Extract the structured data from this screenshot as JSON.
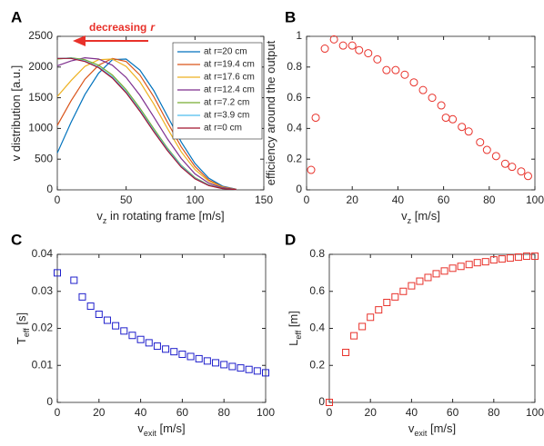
{
  "chart_data": [
    {
      "type": "line",
      "label": "A",
      "xlabel": [
        "v",
        "z",
        " in rotating frame [m/s]"
      ],
      "ylabel": [
        "v distribution [a.u.]"
      ],
      "annotation": [
        "decreasing",
        "r"
      ],
      "annotation_color": "#e8312a",
      "legend": "northeast",
      "x": [
        0,
        10,
        20,
        30,
        40,
        50,
        60,
        70,
        80,
        90,
        100,
        110,
        120,
        130
      ],
      "series": [
        {
          "name": "at r=20 cm",
          "color": "#0072bd",
          "values": [
            600,
            1100,
            1550,
            1900,
            2120,
            2130,
            1950,
            1620,
            1200,
            780,
            430,
            190,
            60,
            10
          ]
        },
        {
          "name": "at r=19.4 cm",
          "color": "#d95319",
          "values": [
            1050,
            1450,
            1800,
            2030,
            2140,
            2090,
            1870,
            1520,
            1100,
            700,
            380,
            160,
            50,
            10
          ]
        },
        {
          "name": "at r=17.6 cm",
          "color": "#edb120",
          "values": [
            1520,
            1780,
            2010,
            2120,
            2130,
            2010,
            1760,
            1400,
            1000,
            620,
            330,
            140,
            45,
            10
          ]
        },
        {
          "name": "at r=12.4 cm",
          "color": "#7e2f8e",
          "values": [
            2020,
            2100,
            2150,
            2130,
            2030,
            1830,
            1540,
            1190,
            830,
            510,
            260,
            110,
            35,
            8
          ]
        },
        {
          "name": "at r=7.2 cm",
          "color": "#77ac30",
          "values": [
            2130,
            2150,
            2120,
            2030,
            1870,
            1630,
            1330,
            1000,
            680,
            400,
            200,
            80,
            25,
            5
          ]
        },
        {
          "name": "at r=3.9 cm",
          "color": "#4dbeee",
          "values": [
            2140,
            2145,
            2100,
            2000,
            1840,
            1600,
            1300,
            970,
            660,
            390,
            190,
            75,
            22,
            5
          ]
        },
        {
          "name": "at r=0 cm",
          "color": "#a2142f",
          "values": [
            2140,
            2140,
            2090,
            1990,
            1820,
            1580,
            1280,
            950,
            640,
            370,
            180,
            70,
            20,
            5
          ]
        }
      ],
      "xlim": [
        0,
        150
      ],
      "xticks": [
        0,
        50,
        100,
        150
      ],
      "ylim": [
        0,
        2500
      ],
      "yticks": [
        0,
        500,
        1000,
        1500,
        2000,
        2500
      ]
    },
    {
      "type": "scatter",
      "label": "B",
      "xlabel": [
        "v",
        "z",
        " [m/s]"
      ],
      "ylabel": [
        "efficiency around the output"
      ],
      "marker": "circle",
      "color": "#e8312a",
      "x": [
        2,
        4,
        8,
        12,
        16,
        20,
        23,
        27,
        31,
        35,
        39,
        43,
        47,
        51,
        55,
        59,
        61,
        64,
        68,
        71,
        76,
        79,
        83,
        87,
        90,
        94,
        97
      ],
      "values": [
        0.13,
        0.47,
        0.92,
        0.98,
        0.94,
        0.94,
        0.91,
        0.89,
        0.85,
        0.78,
        0.78,
        0.75,
        0.7,
        0.65,
        0.6,
        0.55,
        0.47,
        0.46,
        0.41,
        0.38,
        0.31,
        0.26,
        0.22,
        0.17,
        0.15,
        0.12,
        0.09
      ],
      "xlim": [
        0,
        100
      ],
      "xticks": [
        0,
        20,
        40,
        60,
        80,
        100
      ],
      "ylim": [
        0,
        1
      ],
      "yticks": [
        0,
        0.2,
        0.4,
        0.6,
        0.8,
        1
      ]
    },
    {
      "type": "scatter",
      "label": "C",
      "xlabel": [
        "v",
        "exit",
        " [m/s]"
      ],
      "ylabel": [
        "T",
        "eff",
        " [s]"
      ],
      "marker": "square",
      "color": "#1f1fcc",
      "x": [
        0,
        8,
        12,
        16,
        20,
        24,
        28,
        32,
        36,
        40,
        44,
        48,
        52,
        56,
        60,
        64,
        68,
        72,
        76,
        80,
        84,
        88,
        92,
        96,
        100
      ],
      "values": [
        0.035,
        0.033,
        0.0285,
        0.026,
        0.0238,
        0.0222,
        0.0207,
        0.0193,
        0.0181,
        0.017,
        0.0161,
        0.0152,
        0.0144,
        0.0137,
        0.013,
        0.0124,
        0.0118,
        0.0112,
        0.0107,
        0.0102,
        0.0097,
        0.0093,
        0.0089,
        0.0085,
        0.008
      ],
      "xlim": [
        0,
        100
      ],
      "xticks": [
        0,
        20,
        40,
        60,
        80,
        100
      ],
      "ylim": [
        0,
        0.04
      ],
      "yticks": [
        0,
        0.01,
        0.02,
        0.03,
        0.04
      ]
    },
    {
      "type": "scatter",
      "label": "D",
      "xlabel": [
        "v",
        "exit",
        " [m/s]"
      ],
      "ylabel": [
        "L",
        "eff",
        " [m]"
      ],
      "marker": "square",
      "color": "#e8312a",
      "x": [
        0,
        8,
        12,
        16,
        20,
        24,
        28,
        32,
        36,
        40,
        44,
        48,
        52,
        56,
        60,
        64,
        68,
        72,
        76,
        80,
        84,
        88,
        92,
        96,
        100
      ],
      "values": [
        0,
        0.27,
        0.36,
        0.41,
        0.46,
        0.5,
        0.54,
        0.57,
        0.6,
        0.63,
        0.655,
        0.675,
        0.695,
        0.71,
        0.725,
        0.735,
        0.745,
        0.755,
        0.76,
        0.77,
        0.775,
        0.78,
        0.785,
        0.79,
        0.79
      ],
      "xlim": [
        0,
        100
      ],
      "xticks": [
        0,
        20,
        40,
        60,
        80,
        100
      ],
      "ylim": [
        0,
        0.8
      ],
      "yticks": [
        0,
        0.2,
        0.4,
        0.6,
        0.8
      ]
    }
  ]
}
